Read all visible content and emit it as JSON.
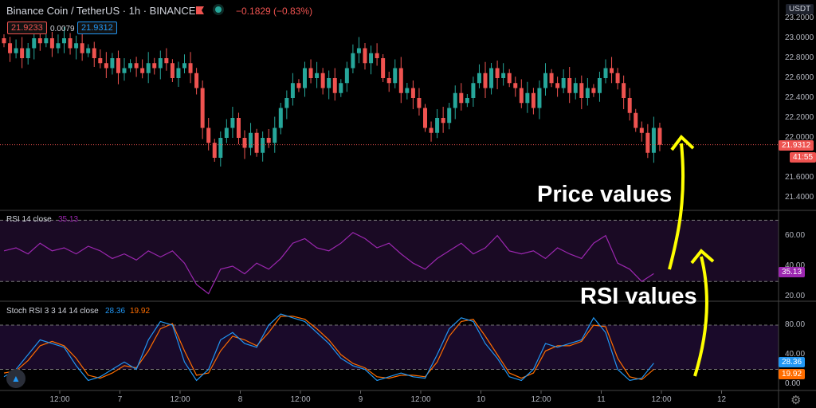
{
  "header": {
    "symbol": "Binance Coin / TetherUS · 1h · BINANCE",
    "change": "−0.1829 (−0.83%)",
    "bid": "21.9233",
    "spread": "0.0079",
    "ask": "21.9312"
  },
  "price_axis": {
    "currency": "USDT",
    "ticks": [
      "23.2000",
      "23.0000",
      "22.8000",
      "22.6000",
      "22.4000",
      "22.2000",
      "22.0000",
      "21.6000",
      "21.4000"
    ],
    "last_price": "21.9312",
    "countdown": "41:55"
  },
  "rsi": {
    "title": "RSI 14 close",
    "value": "35.13",
    "ticks": [
      "60.00",
      "40.00",
      "20.00"
    ]
  },
  "stoch": {
    "title": "Stoch RSI 3 3 14 14 close",
    "k": "28.36",
    "d": "19.92",
    "ticks": [
      "80.00",
      "40.00",
      "0.00"
    ]
  },
  "time_axis": [
    "12:00",
    "7",
    "12:00",
    "8",
    "12:00",
    "9",
    "12:00",
    "10",
    "12:00",
    "11",
    "12:00",
    "12"
  ],
  "annotations": {
    "price": "Price values",
    "rsi": "RSI values"
  },
  "colors": {
    "up": "#26a69a",
    "down": "#ef5350",
    "rsi": "#9c27b0",
    "k": "#2196f3",
    "d": "#ff6d00",
    "arrow": "#ffff00"
  },
  "chart_data": [
    {
      "type": "candlestick",
      "title": "Binance Coin / TetherUS · 1h · BINANCE",
      "ylim": [
        21.3,
        23.3
      ],
      "closes": [
        22.95,
        22.85,
        22.9,
        22.8,
        22.9,
        23.0,
        22.95,
        23.0,
        22.9,
        22.95,
        23.0,
        22.9,
        22.95,
        22.85,
        22.9,
        22.8,
        22.75,
        22.7,
        22.8,
        22.65,
        22.7,
        22.75,
        22.7,
        22.65,
        22.75,
        22.7,
        22.8,
        22.75,
        22.6,
        22.7,
        22.75,
        22.65,
        22.5,
        22.1,
        21.95,
        21.8,
        22.0,
        22.1,
        22.2,
        22.0,
        21.9,
        22.05,
        21.85,
        22.0,
        21.95,
        22.1,
        22.3,
        22.4,
        22.55,
        22.5,
        22.7,
        22.6,
        22.65,
        22.5,
        22.6,
        22.45,
        22.55,
        22.7,
        22.85,
        22.9,
        22.75,
        22.85,
        22.8,
        22.6,
        22.55,
        22.7,
        22.45,
        22.5,
        22.4,
        22.3,
        22.1,
        22.05,
        22.2,
        22.15,
        22.3,
        22.45,
        22.35,
        22.4,
        22.55,
        22.65,
        22.5,
        22.7,
        22.6,
        22.65,
        22.55,
        22.5,
        22.35,
        22.45,
        22.3,
        22.5,
        22.65,
        22.55,
        22.5,
        22.6,
        22.45,
        22.55,
        22.4,
        22.5,
        22.45,
        22.6,
        22.7,
        22.65,
        22.55,
        22.4,
        22.25,
        22.1,
        22.05,
        21.85,
        22.1,
        21.93
      ]
    },
    {
      "type": "line",
      "title": "RSI 14 close",
      "ylim": [
        15,
        75
      ],
      "bands": [
        30,
        70
      ],
      "values": [
        50,
        52,
        48,
        55,
        50,
        52,
        48,
        53,
        50,
        45,
        48,
        44,
        50,
        46,
        50,
        42,
        28,
        22,
        38,
        40,
        35,
        42,
        38,
        45,
        55,
        58,
        52,
        50,
        55,
        62,
        58,
        52,
        55,
        48,
        42,
        38,
        45,
        50,
        55,
        48,
        52,
        60,
        50,
        48,
        50,
        45,
        52,
        48,
        45,
        55,
        60,
        42,
        38,
        30,
        35.13
      ]
    },
    {
      "type": "line",
      "title": "Stoch RSI 3 3 14 14 close",
      "ylim": [
        -5,
        105
      ],
      "bands": [
        20,
        80
      ],
      "series": [
        {
          "values": [
            10,
            20,
            40,
            60,
            55,
            50,
            25,
            5,
            10,
            20,
            30,
            20,
            60,
            85,
            80,
            30,
            5,
            20,
            60,
            70,
            55,
            50,
            80,
            95,
            90,
            85,
            70,
            55,
            35,
            25,
            20,
            5,
            10,
            15,
            10,
            8,
            40,
            75,
            90,
            85,
            55,
            35,
            10,
            5,
            20,
            55,
            50,
            55,
            60,
            90,
            70,
            20,
            5,
            8,
            28.36
          ]
        },
        {
          "values": [
            15,
            18,
            32,
            52,
            58,
            52,
            35,
            12,
            8,
            15,
            25,
            22,
            45,
            75,
            82,
            45,
            12,
            15,
            45,
            65,
            60,
            52,
            70,
            92,
            92,
            88,
            75,
            60,
            40,
            28,
            22,
            10,
            8,
            12,
            12,
            10,
            30,
            65,
            85,
            88,
            65,
            40,
            15,
            8,
            15,
            45,
            52,
            52,
            58,
            80,
            78,
            35,
            10,
            6,
            19.92
          ]
        }
      ]
    }
  ]
}
